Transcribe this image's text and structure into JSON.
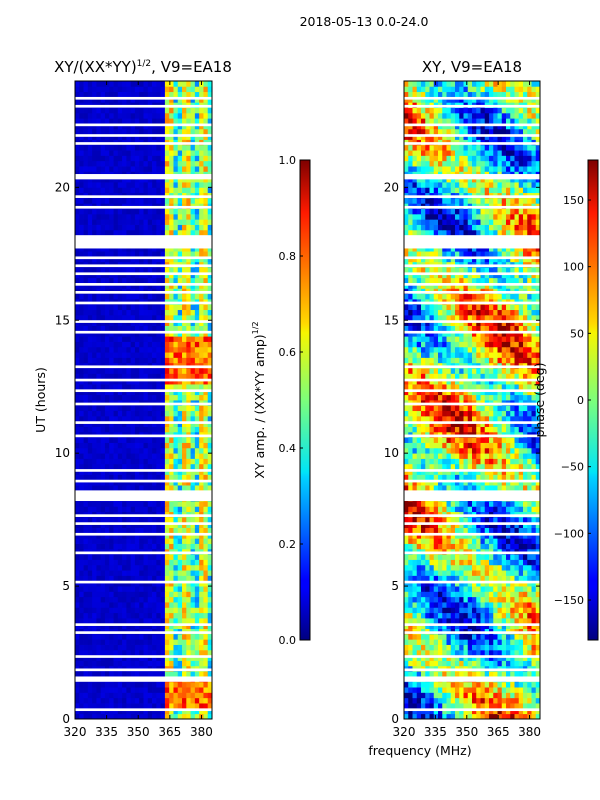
{
  "suptitle": "2018-05-13 0.0-24.0",
  "chart_data": [
    {
      "type": "heatmap",
      "title": "XY/(XX*YY)",
      "title_sup": "1/2",
      "title_tail": ", V9=EA18",
      "xlabel": "",
      "ylabel": "UT (hours)",
      "xlim": [
        320,
        385
      ],
      "ylim": [
        0,
        24
      ],
      "xticks": [
        320,
        335,
        350,
        365,
        380
      ],
      "yticks": [
        0,
        5,
        10,
        15,
        20
      ],
      "colorbar": {
        "label": "XY amp. / (XX*YY amp)",
        "label_sup": "1/2",
        "range": [
          0.0,
          1.0
        ],
        "ticks": [
          "0.0",
          "0.2",
          "0.4",
          "0.6",
          "0.8",
          "1.0"
        ]
      },
      "description_values": {
        "background_level": 0.05,
        "active_band_start_mhz": 362,
        "active_band_level": 0.55,
        "peak_hours": [
          1.0,
          13.5
        ],
        "peak_level": 0.9
      }
    },
    {
      "type": "heatmap",
      "title": "XY, V9=EA18",
      "xlabel": "frequency (MHz)",
      "ylabel": "",
      "xlim": [
        320,
        385
      ],
      "ylim": [
        0,
        24
      ],
      "xticks": [
        320,
        335,
        350,
        365,
        380
      ],
      "yticks": [
        0,
        5,
        10,
        15,
        20
      ],
      "colorbar": {
        "label": "phase (deg)",
        "range": [
          -180,
          180
        ],
        "ticks": [
          "−150",
          "−100",
          "−50",
          "0",
          "50",
          "100",
          "150"
        ]
      }
    }
  ],
  "gap_bands_hours": [
    [
      0.3,
      0.4
    ],
    [
      1.4,
      1.6
    ],
    [
      1.8,
      1.9
    ],
    [
      2.3,
      2.4
    ],
    [
      3.2,
      3.3
    ],
    [
      3.5,
      3.6
    ],
    [
      5.1,
      5.2
    ],
    [
      6.2,
      6.3
    ],
    [
      6.9,
      7.0
    ],
    [
      7.3,
      7.4
    ],
    [
      7.6,
      7.7
    ],
    [
      8.2,
      8.6
    ],
    [
      8.9,
      9.0
    ],
    [
      9.3,
      9.4
    ],
    [
      10.6,
      10.7
    ],
    [
      11.1,
      11.2
    ],
    [
      11.8,
      11.9
    ],
    [
      12.3,
      12.4
    ],
    [
      12.7,
      12.8
    ],
    [
      13.2,
      13.3
    ],
    [
      14.5,
      14.6
    ],
    [
      14.9,
      15.0
    ],
    [
      15.6,
      15.7
    ],
    [
      16.0,
      16.1
    ],
    [
      16.3,
      16.4
    ],
    [
      16.7,
      16.8
    ],
    [
      17.0,
      17.1
    ],
    [
      17.3,
      17.4
    ],
    [
      17.7,
      18.2
    ],
    [
      19.2,
      19.3
    ],
    [
      19.6,
      19.7
    ],
    [
      20.3,
      20.5
    ],
    [
      21.6,
      21.7
    ],
    [
      21.9,
      22.0
    ],
    [
      22.3,
      22.4
    ],
    [
      23.0,
      23.1
    ],
    [
      23.3,
      23.4
    ]
  ]
}
